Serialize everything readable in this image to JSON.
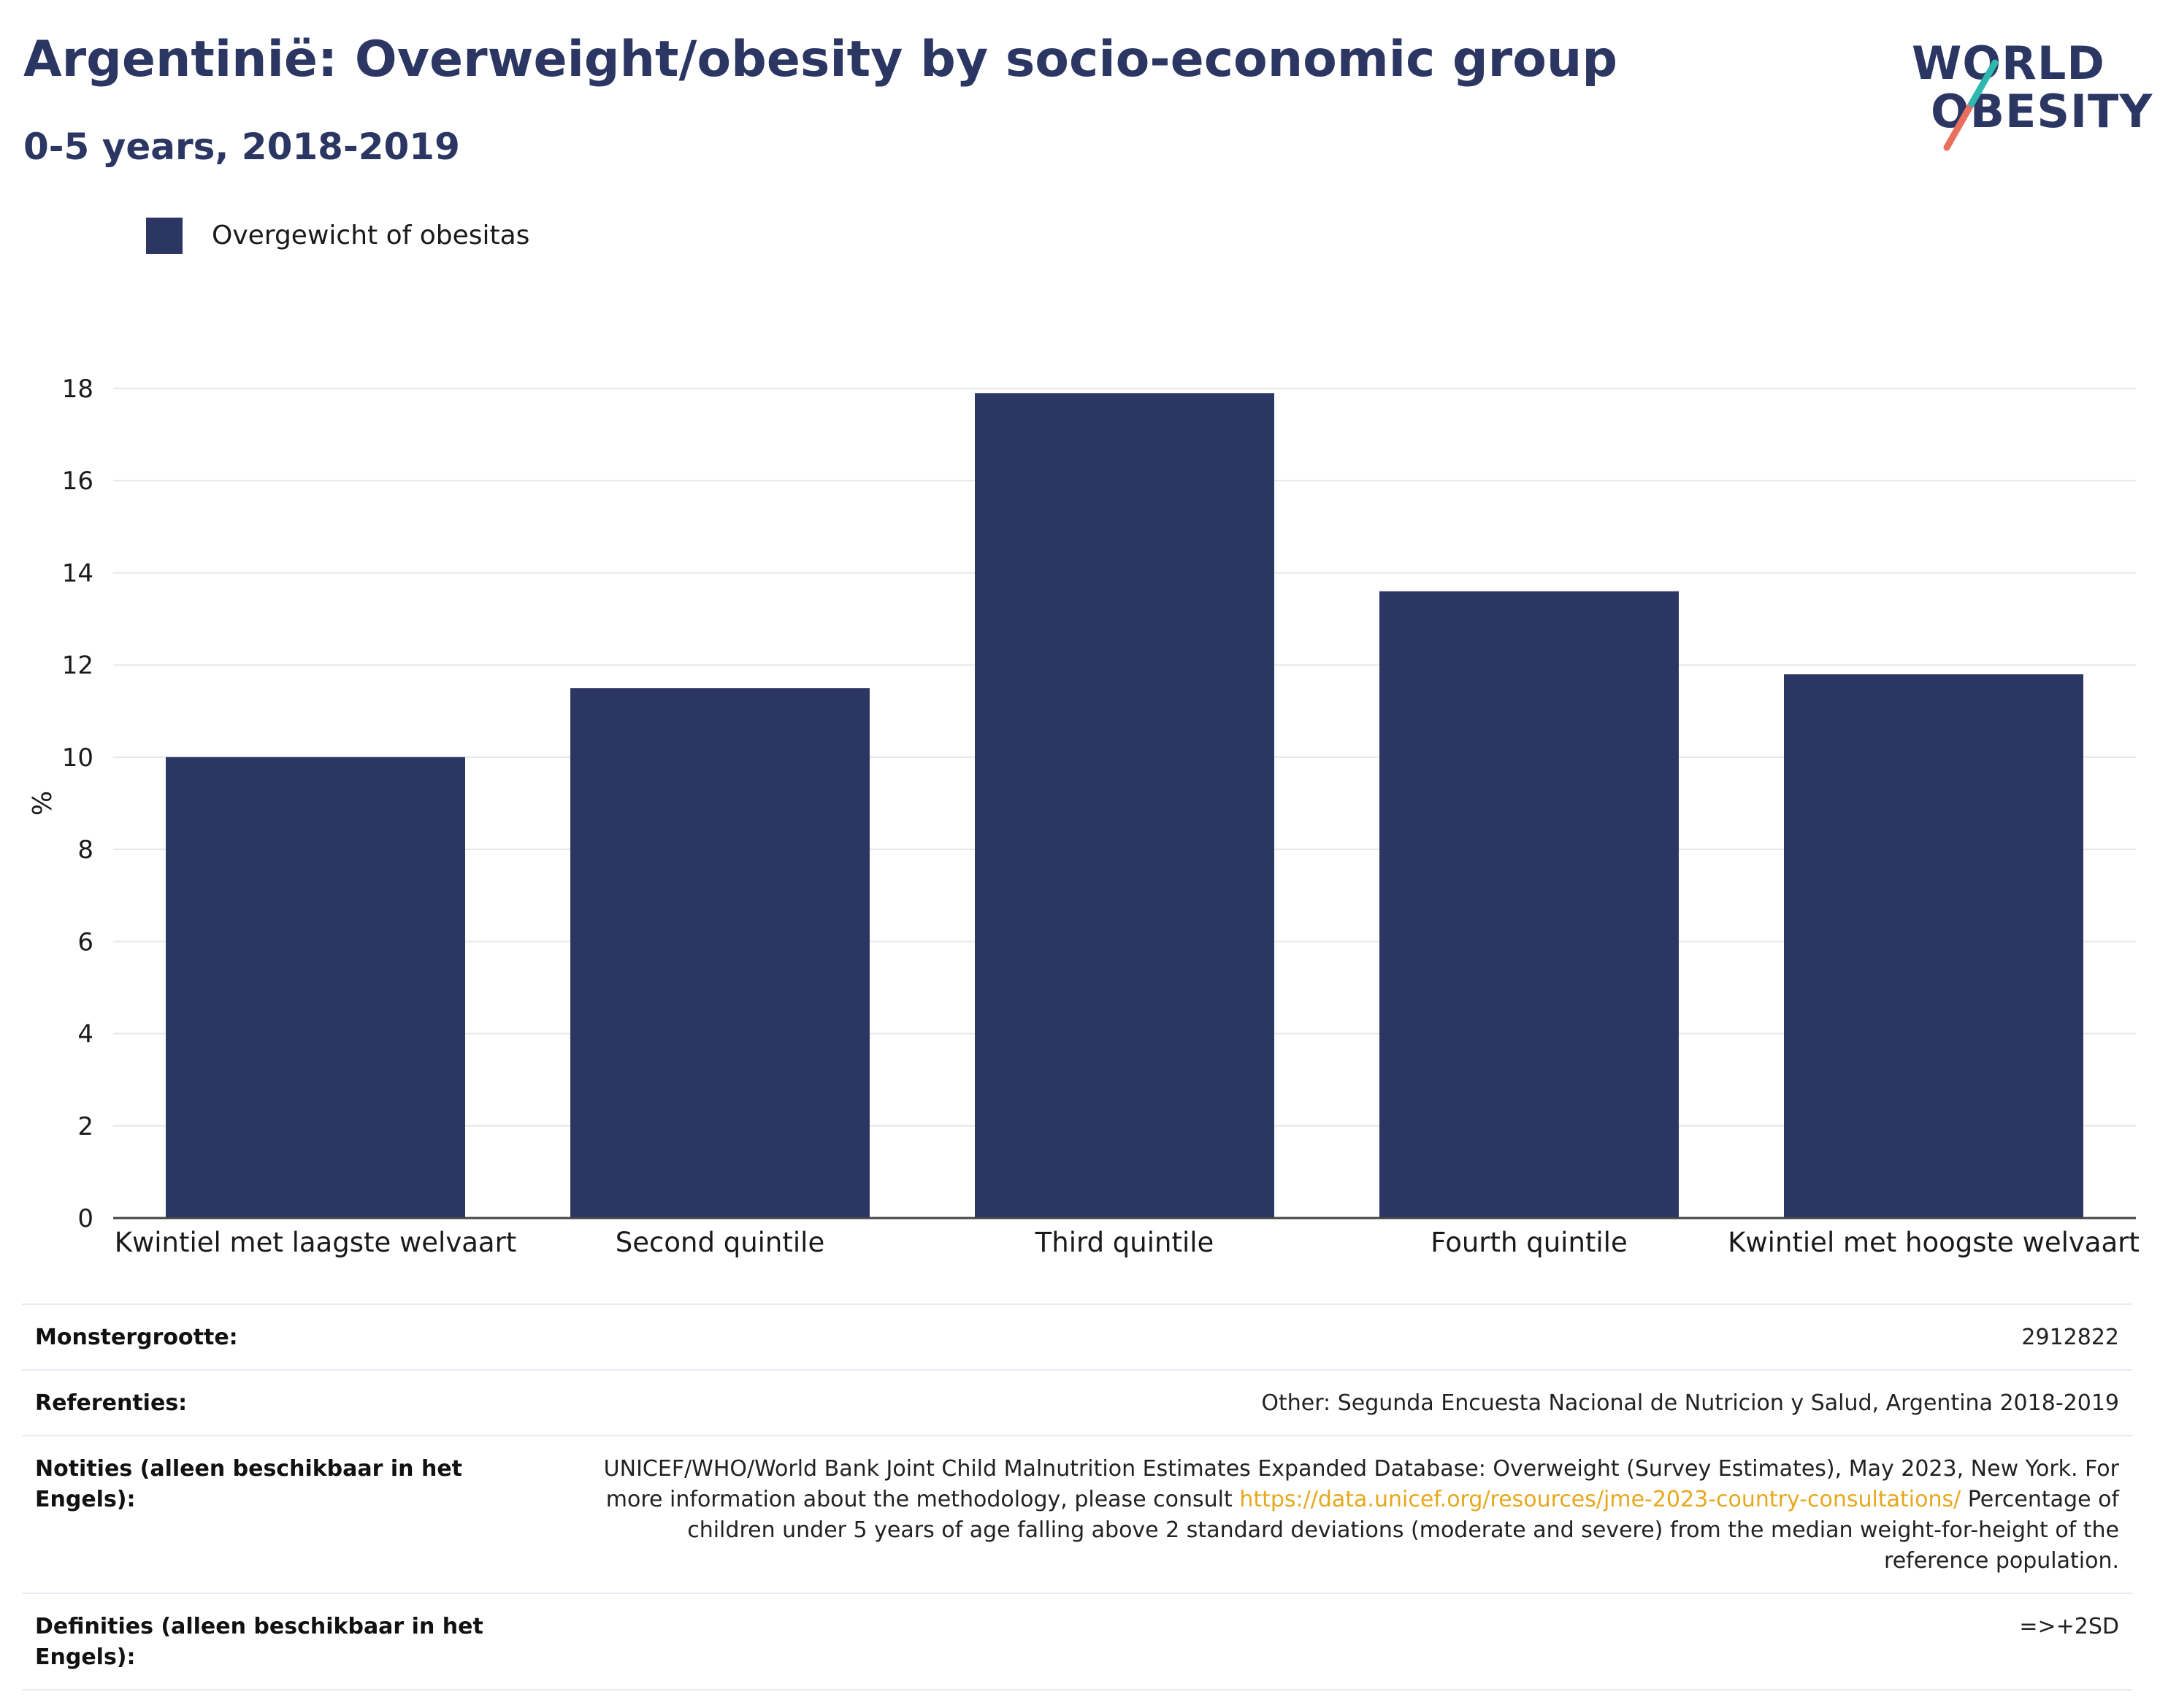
{
  "header": {
    "title": "Argentinië: Overweight/obesity by socio-economic group",
    "subtitle": "0-5 years, 2018-2019"
  },
  "logo": {
    "line1": "WORLD",
    "line2": "OBESITY",
    "accent_colors": [
      "#2fb7b0",
      "#e8705d"
    ]
  },
  "legend": {
    "label": "Overgewicht of obesitas",
    "color": "#2b3663"
  },
  "chart_data": {
    "type": "bar",
    "categories": [
      "Kwintiel met laagste welvaart",
      "Second quintile",
      "Third quintile",
      "Fourth quintile",
      "Kwintiel met hoogste welvaart"
    ],
    "series": [
      {
        "name": "Overgewicht of obesitas",
        "values": [
          10.0,
          11.5,
          17.9,
          13.6,
          11.8
        ],
        "color": "#2b3663"
      }
    ],
    "ylabel": "%",
    "ylim": [
      0,
      18
    ],
    "yticks": [
      0,
      2,
      4,
      6,
      8,
      10,
      12,
      14,
      16,
      18
    ],
    "grid": true,
    "legend_position": "top-left"
  },
  "info": {
    "sample": {
      "label": "Monstergrootte:",
      "value": "2912822"
    },
    "references": {
      "label": "Referenties:",
      "value": "Other: Segunda Encuesta Nacional de Nutricion y Salud, Argentina 2018-2019"
    },
    "notes": {
      "label": "Notities (alleen beschikbaar in het Engels):",
      "text_before": "UNICEF/WHO/World Bank Joint Child Malnutrition Estimates Expanded Database: Overweight (Survey Estimates), May 2023, New York. For more information about the methodology, please consult ",
      "link": "https://data.unicef.org/resources/jme-2023-country-consultations/",
      "text_after": " Percentage of children under 5 years of age falling above 2 standard deviations (moderate and severe) from the median weight-for-height of the reference population."
    },
    "definitions": {
      "label": "Definities (alleen beschikbaar in het Engels):",
      "value": "=>+2SD"
    }
  }
}
